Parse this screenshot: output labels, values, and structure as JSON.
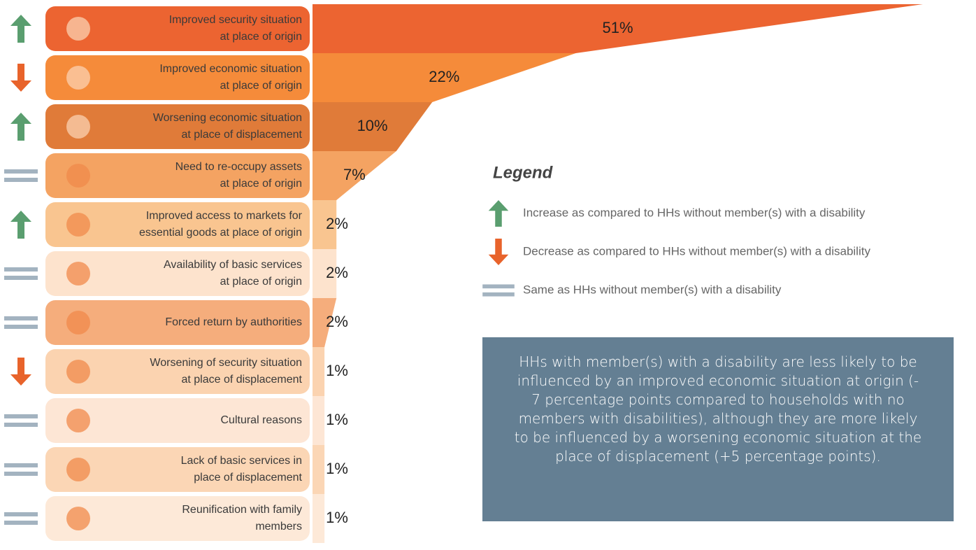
{
  "chart_data": {
    "type": "funnel",
    "labels": [
      [
        "Improved security situation",
        "at place of origin"
      ],
      [
        "Improved economic situation",
        "at place of origin"
      ],
      [
        "Worsening economic situation",
        "at place of displacement"
      ],
      [
        "Need to re-occupy assets",
        "at place of origin"
      ],
      [
        "Improved access to markets for",
        "essential goods at place of origin"
      ],
      [
        "Availability of basic services",
        "at place of origin"
      ],
      [
        "Forced return by authorities"
      ],
      [
        "Worsening of security situation",
        "at place of displacement"
      ],
      [
        "Cultural reasons"
      ],
      [
        "Lack of basic services in",
        "place of displacement"
      ],
      [
        "Reunification with family",
        "members"
      ]
    ],
    "values": [
      51,
      22,
      10,
      7,
      2,
      2,
      2,
      1,
      1,
      1,
      1
    ],
    "value_labels": [
      "51%",
      "22%",
      "10%",
      "7%",
      "2%",
      "2%",
      "2%",
      "1%",
      "1%",
      "1%",
      "1%"
    ],
    "colors": [
      "#ec6431",
      "#f58b3a",
      "#e07b39",
      "#f4a362",
      "#f9c590",
      "#fde3cd",
      "#f5ad7c",
      "#fbd3b0",
      "#fde6d5",
      "#fbd6b5",
      "#fde9d8"
    ],
    "change": [
      "up",
      "down",
      "up",
      "same",
      "up",
      "same",
      "same",
      "down",
      "same",
      "same",
      "same"
    ],
    "change_colors": {
      "up": "#5a9e6f",
      "down": "#e8632b",
      "same": "#a3b3c0"
    },
    "legend_title": "Legend",
    "legend": [
      {
        "key": "up",
        "text": "Increase as compared to HHs without member(s) with a disability"
      },
      {
        "key": "down",
        "text": "Decrease as compared to HHs without member(s) with a disability"
      },
      {
        "key": "same",
        "text": "Same as HHs without member(s) with a disability"
      }
    ],
    "note": "HHs with member(s) with a disability are less likely to be influenced by an improved economic situation at origin (- 7 percentage points compared to households with no members with disabilities), although they are more likely to be influenced by a worsening economic situation at the place of displacement (+5 percentage points)."
  }
}
